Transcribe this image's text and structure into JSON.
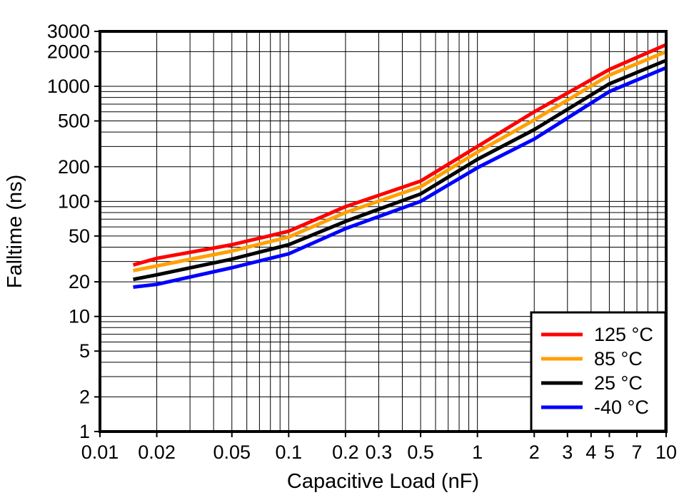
{
  "chart_data": {
    "type": "line",
    "title": "",
    "xlabel": "Capacitive Load (nF)",
    "ylabel": "Falltime (ns)",
    "xscale": "log",
    "yscale": "log",
    "xlim": [
      0.01,
      10
    ],
    "ylim": [
      1,
      3000
    ],
    "grid": "full-log-minor-grid",
    "grid_color": "#000000",
    "frame_color": "#000000",
    "background_color": "#ffffff",
    "legend_position": "bottom-right",
    "x_ticks": [
      0.01,
      0.02,
      0.05,
      0.1,
      0.2,
      0.3,
      0.5,
      1,
      2,
      3,
      4,
      5,
      7,
      10
    ],
    "x_tick_labels": [
      "0.01",
      "0.02",
      "0.05",
      "0.1",
      "0.2",
      "0.3",
      "0.5",
      "1",
      "2",
      "3",
      "4",
      "5",
      "7",
      "10"
    ],
    "y_ticks": [
      1,
      2,
      5,
      10,
      20,
      50,
      100,
      200,
      500,
      1000,
      2000,
      3000
    ],
    "y_tick_labels": [
      "1",
      "2",
      "5",
      "10",
      "20",
      "50",
      "100",
      "200",
      "500",
      "1000",
      "2000",
      "3000"
    ],
    "x": [
      0.015,
      0.02,
      0.05,
      0.1,
      0.2,
      0.5,
      1,
      2,
      5,
      10
    ],
    "series": [
      {
        "name": "125 °C",
        "color": "#ff0000",
        "values": [
          28,
          32,
          42,
          55,
          90,
          150,
          300,
          600,
          1400,
          2300
        ]
      },
      {
        "name": "85 °C",
        "color": "#ffa000",
        "values": [
          25,
          27.5,
          37,
          49,
          80,
          134,
          268,
          510,
          1250,
          2000
        ]
      },
      {
        "name": "25 °C",
        "color": "#000000",
        "values": [
          21,
          23,
          31.5,
          42,
          67,
          116,
          232,
          420,
          1050,
          1680
        ]
      },
      {
        "name": "-40 °C",
        "color": "#0000ff",
        "values": [
          18,
          19,
          26.5,
          35,
          58,
          100,
          196,
          348,
          900,
          1450
        ]
      }
    ]
  }
}
